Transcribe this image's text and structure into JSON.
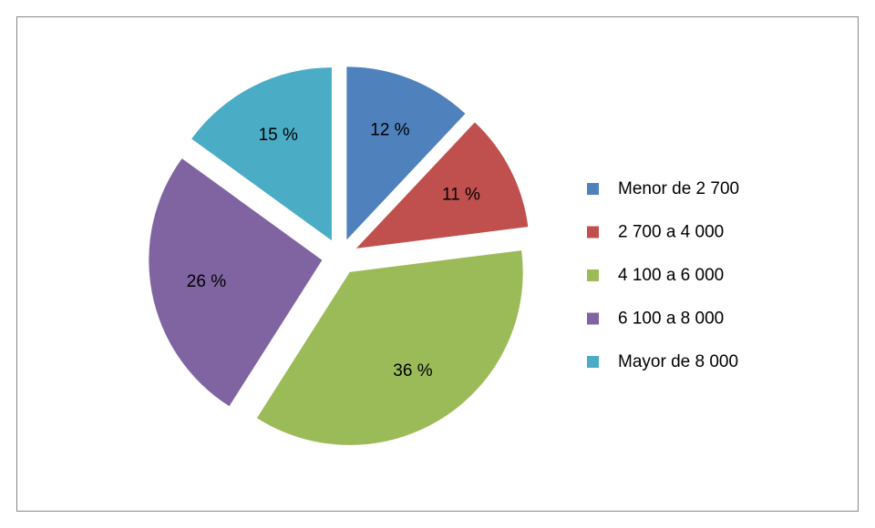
{
  "chart_data": {
    "type": "pie",
    "categories": [
      "Menor de 2 700",
      "2 700 a 4 000",
      "4 100 a 6 000",
      "6 100 a 8 000",
      "Mayor de 8 000"
    ],
    "values": [
      12,
      11,
      36,
      26,
      15
    ],
    "value_labels": [
      "12 %",
      "11 %",
      "36 %",
      "26 %",
      "15 %"
    ],
    "colors": [
      "#4f81bd",
      "#c0504d",
      "#9bbb59",
      "#8064a2",
      "#4bacc6"
    ],
    "legend": "right"
  }
}
